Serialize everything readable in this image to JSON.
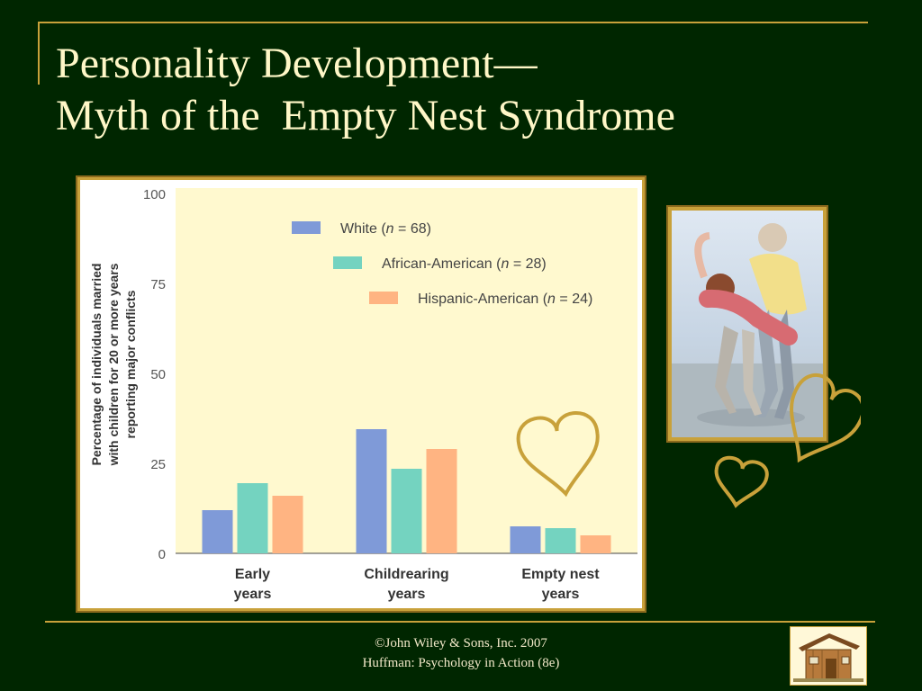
{
  "slide": {
    "title_line1": "Personality Development—",
    "title_line2": "Myth of the  Empty Nest Syndrome",
    "footer_line1": "©John Wiley & Sons, Inc. 2007",
    "footer_line2": "Huffman: Psychology in Action (8e)",
    "photo_icon": "couple-on-beach-photo",
    "logo_icon": "wooden-house-logo",
    "heart_color": "#c8a13a"
  },
  "chart_data": {
    "type": "bar",
    "categories": [
      [
        "Early",
        "years"
      ],
      [
        "Childrearing",
        "years"
      ],
      [
        "Empty nest",
        "years"
      ]
    ],
    "series": [
      {
        "name": "White",
        "n": "68",
        "color": "#7f9ad8",
        "values": [
          12,
          34.5,
          7.5
        ]
      },
      {
        "name": "African-American",
        "n": "28",
        "color": "#74d3c0",
        "values": [
          19.5,
          23.5,
          7
        ]
      },
      {
        "name": "Hispanic-American",
        "n": "24",
        "color": "#ffb482",
        "values": [
          16,
          29,
          5
        ]
      }
    ],
    "ylabel_lines": [
      "Percentage of individuals married",
      "with children for 20 or more years",
      "reporting major conflicts"
    ],
    "ylim": [
      0,
      100
    ],
    "yticks": [
      0,
      25,
      50,
      75,
      100
    ],
    "legend_position": "top-center",
    "plot_background": "#fff9cf",
    "grid": false
  }
}
